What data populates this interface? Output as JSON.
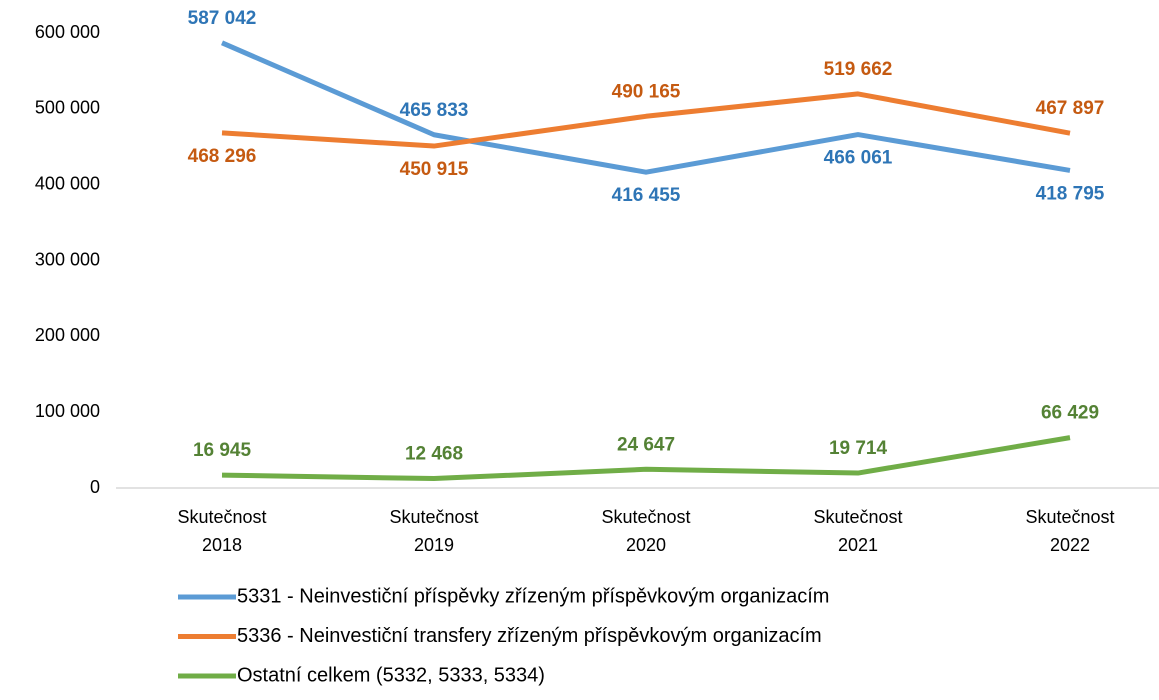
{
  "chart_data": {
    "type": "line",
    "categories": [
      "Skutečnost 2018",
      "Skutečnost 2019",
      "Skutečnost 2020",
      "Skutečnost 2021",
      "Skutečnost 2022"
    ],
    "series": [
      {
        "name": "5331 - Neinvestiční příspěvky zřízeným příspěvkovým organizacím",
        "color": "#5b9bd5",
        "label_color": "#2e75b6",
        "values": [
          587042,
          465833,
          416455,
          466061,
          418795
        ],
        "value_labels": [
          "587 042",
          "465 833",
          "416 455",
          "466 061",
          "418 795"
        ]
      },
      {
        "name": "5336 - Neinvestiční transfery zřízeným příspěvkovým organizacím",
        "color": "#ed7d31",
        "label_color": "#c55a11",
        "values": [
          468296,
          450915,
          490165,
          519662,
          467897
        ],
        "value_labels": [
          "468 296",
          "450 915",
          "490 165",
          "519 662",
          "467 897"
        ]
      },
      {
        "name": "Ostatní celkem (5332, 5333, 5334)",
        "color": "#70ad47",
        "label_color": "#548235",
        "values": [
          16945,
          12468,
          24647,
          19714,
          66429
        ],
        "value_labels": [
          "16 945",
          "12 468",
          "24 647",
          "19 714",
          "66 429"
        ]
      }
    ],
    "ylim": [
      0,
      600000
    ],
    "yticks": [
      {
        "value": 0,
        "label": "0"
      },
      {
        "value": 100000,
        "label": "100 000"
      },
      {
        "value": 200000,
        "label": "200 000"
      },
      {
        "value": 300000,
        "label": "300 000"
      },
      {
        "value": 400000,
        "label": "400 000"
      },
      {
        "value": 500000,
        "label": "500 000"
      },
      {
        "value": 600000,
        "label": "600 000"
      }
    ],
    "grid": false,
    "legend": "bottom"
  }
}
